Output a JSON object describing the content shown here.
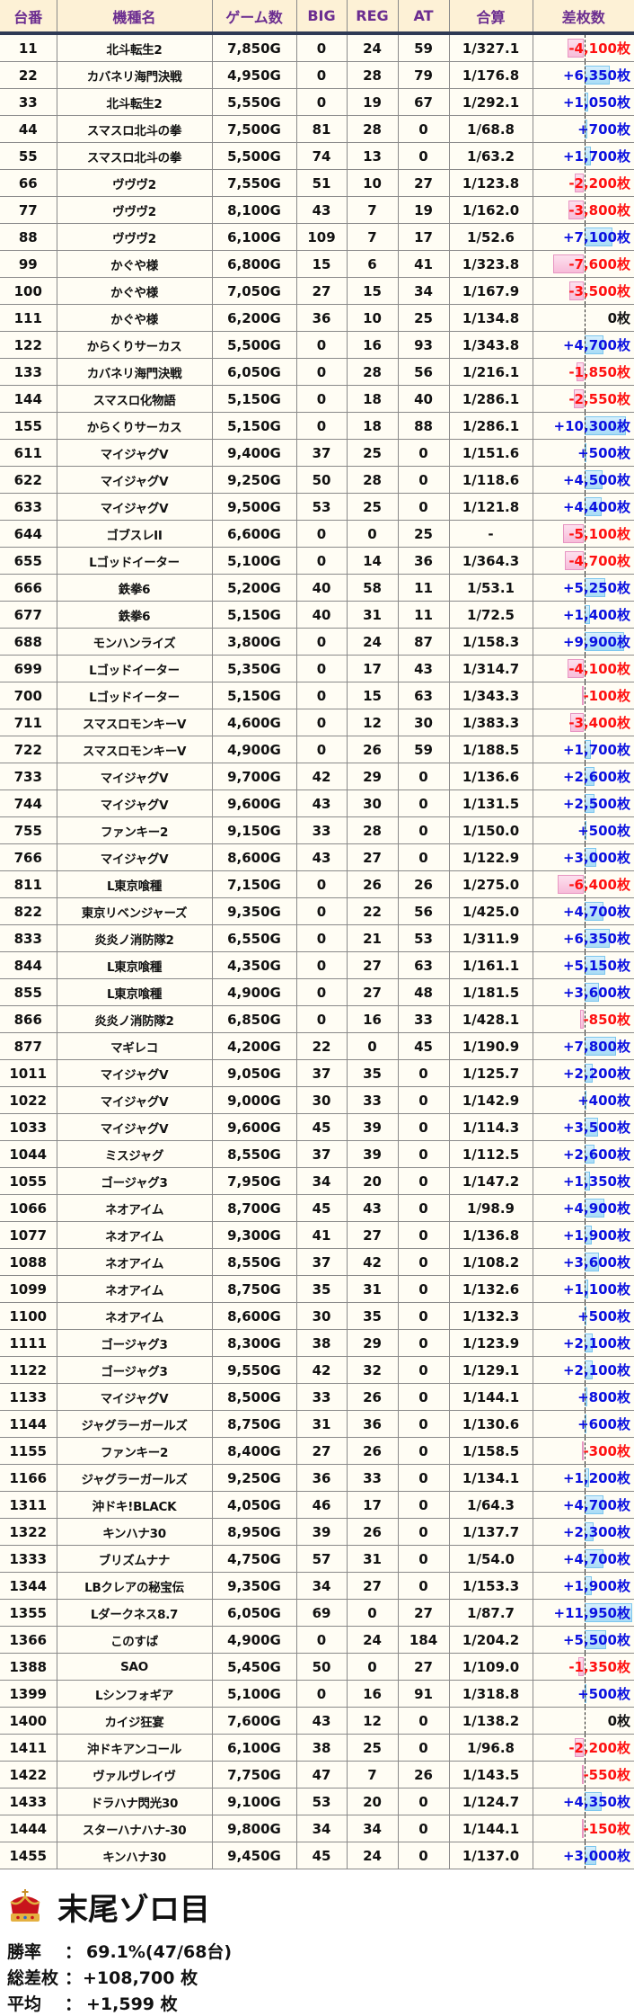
{
  "columns": [
    "台番",
    "機種名",
    "ゲーム数",
    "BIG",
    "REG",
    "AT",
    "合算",
    "差枚数"
  ],
  "unit": "枚",
  "colors": {
    "header_text": "#6b2d90",
    "header_bg": "#fdf1d6",
    "positive": "#0a10e0",
    "negative": "#ff1010",
    "positive_bar": "#a8dcf6",
    "negative_bar": "#f7bcd9"
  },
  "rows": [
    [
      "11",
      "北斗転生2",
      "7,850G",
      "0",
      "24",
      "59",
      "1/327.1",
      -4100
    ],
    [
      "22",
      "カバネリ海門決戦",
      "4,950G",
      "0",
      "28",
      "79",
      "1/176.8",
      6350
    ],
    [
      "33",
      "北斗転生2",
      "5,550G",
      "0",
      "19",
      "67",
      "1/292.1",
      1050
    ],
    [
      "44",
      "スマスロ北斗の拳",
      "7,500G",
      "81",
      "28",
      "0",
      "1/68.8",
      700
    ],
    [
      "55",
      "スマスロ北斗の拳",
      "5,500G",
      "74",
      "13",
      "0",
      "1/63.2",
      1700
    ],
    [
      "66",
      "ヴヴヴ2",
      "7,550G",
      "51",
      "10",
      "27",
      "1/123.8",
      -2200
    ],
    [
      "77",
      "ヴヴヴ2",
      "8,100G",
      "43",
      "7",
      "19",
      "1/162.0",
      -3800
    ],
    [
      "88",
      "ヴヴヴ2",
      "6,100G",
      "109",
      "7",
      "17",
      "1/52.6",
      7100
    ],
    [
      "99",
      "かぐや様",
      "6,800G",
      "15",
      "6",
      "41",
      "1/323.8",
      -7600
    ],
    [
      "100",
      "かぐや様",
      "7,050G",
      "27",
      "15",
      "34",
      "1/167.9",
      -3500
    ],
    [
      "111",
      "かぐや様",
      "6,200G",
      "36",
      "10",
      "25",
      "1/134.8",
      0
    ],
    [
      "122",
      "からくりサーカス",
      "5,500G",
      "0",
      "16",
      "93",
      "1/343.8",
      4700
    ],
    [
      "133",
      "カバネリ海門決戦",
      "6,050G",
      "0",
      "28",
      "56",
      "1/216.1",
      -1850
    ],
    [
      "144",
      "スマスロ化物語",
      "5,150G",
      "0",
      "18",
      "40",
      "1/286.1",
      -2550
    ],
    [
      "155",
      "からくりサーカス",
      "5,150G",
      "0",
      "18",
      "88",
      "1/286.1",
      10300
    ],
    [
      "611",
      "マイジャグV",
      "9,400G",
      "37",
      "25",
      "0",
      "1/151.6",
      500
    ],
    [
      "622",
      "マイジャグV",
      "9,250G",
      "50",
      "28",
      "0",
      "1/118.6",
      4500
    ],
    [
      "633",
      "マイジャグV",
      "9,500G",
      "53",
      "25",
      "0",
      "1/121.8",
      4400
    ],
    [
      "644",
      "ゴブスレII",
      "6,600G",
      "0",
      "0",
      "25",
      "-",
      -5100
    ],
    [
      "655",
      "Lゴッドイーター",
      "5,100G",
      "0",
      "14",
      "36",
      "1/364.3",
      -4700
    ],
    [
      "666",
      "鉄拳6",
      "5,200G",
      "40",
      "58",
      "11",
      "1/53.1",
      5250
    ],
    [
      "677",
      "鉄拳6",
      "5,150G",
      "40",
      "31",
      "11",
      "1/72.5",
      1400
    ],
    [
      "688",
      "モンハンライズ",
      "3,800G",
      "0",
      "24",
      "87",
      "1/158.3",
      9900
    ],
    [
      "699",
      "Lゴッドイーター",
      "5,350G",
      "0",
      "17",
      "43",
      "1/314.7",
      -4100
    ],
    [
      "700",
      "Lゴッドイーター",
      "5,150G",
      "0",
      "15",
      "63",
      "1/343.3",
      -100
    ],
    [
      "711",
      "スマスロモンキーV",
      "4,600G",
      "0",
      "12",
      "30",
      "1/383.3",
      -3400
    ],
    [
      "722",
      "スマスロモンキーV",
      "4,900G",
      "0",
      "26",
      "59",
      "1/188.5",
      1700
    ],
    [
      "733",
      "マイジャグV",
      "9,700G",
      "42",
      "29",
      "0",
      "1/136.6",
      2600
    ],
    [
      "744",
      "マイジャグV",
      "9,600G",
      "43",
      "30",
      "0",
      "1/131.5",
      2500
    ],
    [
      "755",
      "ファンキー2",
      "9,150G",
      "33",
      "28",
      "0",
      "1/150.0",
      500
    ],
    [
      "766",
      "マイジャグV",
      "8,600G",
      "43",
      "27",
      "0",
      "1/122.9",
      3000
    ],
    [
      "811",
      "L東京喰種",
      "7,150G",
      "0",
      "26",
      "26",
      "1/275.0",
      -6400
    ],
    [
      "822",
      "東京リベンジャーズ",
      "9,350G",
      "0",
      "22",
      "56",
      "1/425.0",
      4700
    ],
    [
      "833",
      "炎炎ノ消防隊2",
      "6,550G",
      "0",
      "21",
      "53",
      "1/311.9",
      6350
    ],
    [
      "844",
      "L東京喰種",
      "4,350G",
      "0",
      "27",
      "63",
      "1/161.1",
      5150
    ],
    [
      "855",
      "L東京喰種",
      "4,900G",
      "0",
      "27",
      "48",
      "1/181.5",
      3600
    ],
    [
      "866",
      "炎炎ノ消防隊2",
      "6,850G",
      "0",
      "16",
      "33",
      "1/428.1",
      -850
    ],
    [
      "877",
      "マギレコ",
      "4,200G",
      "22",
      "0",
      "45",
      "1/190.9",
      7800
    ],
    [
      "1011",
      "マイジャグV",
      "9,050G",
      "37",
      "35",
      "0",
      "1/125.7",
      2200
    ],
    [
      "1022",
      "マイジャグV",
      "9,000G",
      "30",
      "33",
      "0",
      "1/142.9",
      400
    ],
    [
      "1033",
      "マイジャグV",
      "9,600G",
      "45",
      "39",
      "0",
      "1/114.3",
      3500
    ],
    [
      "1044",
      "ミスジャグ",
      "8,550G",
      "37",
      "39",
      "0",
      "1/112.5",
      2600
    ],
    [
      "1055",
      "ゴージャグ3",
      "7,950G",
      "34",
      "20",
      "0",
      "1/147.2",
      1350
    ],
    [
      "1066",
      "ネオアイム",
      "8,700G",
      "45",
      "43",
      "0",
      "1/98.9",
      4900
    ],
    [
      "1077",
      "ネオアイム",
      "9,300G",
      "41",
      "27",
      "0",
      "1/136.8",
      1900
    ],
    [
      "1088",
      "ネオアイム",
      "8,550G",
      "37",
      "42",
      "0",
      "1/108.2",
      3600
    ],
    [
      "1099",
      "ネオアイム",
      "8,750G",
      "35",
      "31",
      "0",
      "1/132.6",
      1100
    ],
    [
      "1100",
      "ネオアイム",
      "8,600G",
      "30",
      "35",
      "0",
      "1/132.3",
      500
    ],
    [
      "1111",
      "ゴージャグ3",
      "8,300G",
      "38",
      "29",
      "0",
      "1/123.9",
      2100
    ],
    [
      "1122",
      "ゴージャグ3",
      "9,550G",
      "42",
      "32",
      "0",
      "1/129.1",
      2100
    ],
    [
      "1133",
      "マイジャグV",
      "8,500G",
      "33",
      "26",
      "0",
      "1/144.1",
      800
    ],
    [
      "1144",
      "ジャグラーガールズ",
      "8,750G",
      "31",
      "36",
      "0",
      "1/130.6",
      600
    ],
    [
      "1155",
      "ファンキー2",
      "8,400G",
      "27",
      "26",
      "0",
      "1/158.5",
      -300
    ],
    [
      "1166",
      "ジャグラーガールズ",
      "9,250G",
      "36",
      "33",
      "0",
      "1/134.1",
      1200
    ],
    [
      "1311",
      "沖ドキ!BLACK",
      "4,050G",
      "46",
      "17",
      "0",
      "1/64.3",
      4700
    ],
    [
      "1322",
      "キンハナ30",
      "8,950G",
      "39",
      "26",
      "0",
      "1/137.7",
      2300
    ],
    [
      "1333",
      "ブリズムナナ",
      "4,750G",
      "57",
      "31",
      "0",
      "1/54.0",
      4700
    ],
    [
      "1344",
      "LBクレアの秘宝伝",
      "9,350G",
      "34",
      "27",
      "0",
      "1/153.3",
      1900
    ],
    [
      "1355",
      "Lダークネス8.7",
      "6,050G",
      "69",
      "0",
      "27",
      "1/87.7",
      11950
    ],
    [
      "1366",
      "このすば",
      "4,900G",
      "0",
      "24",
      "184",
      "1/204.2",
      5500
    ],
    [
      "1388",
      "SAO",
      "5,450G",
      "50",
      "0",
      "27",
      "1/109.0",
      -1350
    ],
    [
      "1399",
      "Lシンフォギア",
      "5,100G",
      "0",
      "16",
      "91",
      "1/318.8",
      500
    ],
    [
      "1400",
      "カイジ狂宴",
      "7,600G",
      "43",
      "12",
      "0",
      "1/138.2",
      0
    ],
    [
      "1411",
      "沖ドキアンコール",
      "6,100G",
      "38",
      "25",
      "0",
      "1/96.8",
      -2200
    ],
    [
      "1422",
      "ヴァルヴレイヴ",
      "7,750G",
      "47",
      "7",
      "26",
      "1/143.5",
      -550
    ],
    [
      "1433",
      "ドラハナ閃光30",
      "9,100G",
      "53",
      "20",
      "0",
      "1/124.7",
      4350
    ],
    [
      "1444",
      "スターハナハナ-30",
      "9,800G",
      "34",
      "34",
      "0",
      "1/144.1",
      -150
    ],
    [
      "1455",
      "キンハナ30",
      "9,450G",
      "45",
      "24",
      "0",
      "1/137.0",
      3000
    ]
  ],
  "summary": {
    "icon": "crown-icon",
    "title": "末尾ゾロ目",
    "lines": [
      {
        "label": "勝率",
        "sep": "：",
        "value": "69.1%(47/68台)"
      },
      {
        "label": "総差枚",
        "sep": "：",
        "value": "+108,700 枚"
      },
      {
        "label": "平均",
        "sep": "：",
        "value": "+1,599 枚"
      }
    ]
  }
}
